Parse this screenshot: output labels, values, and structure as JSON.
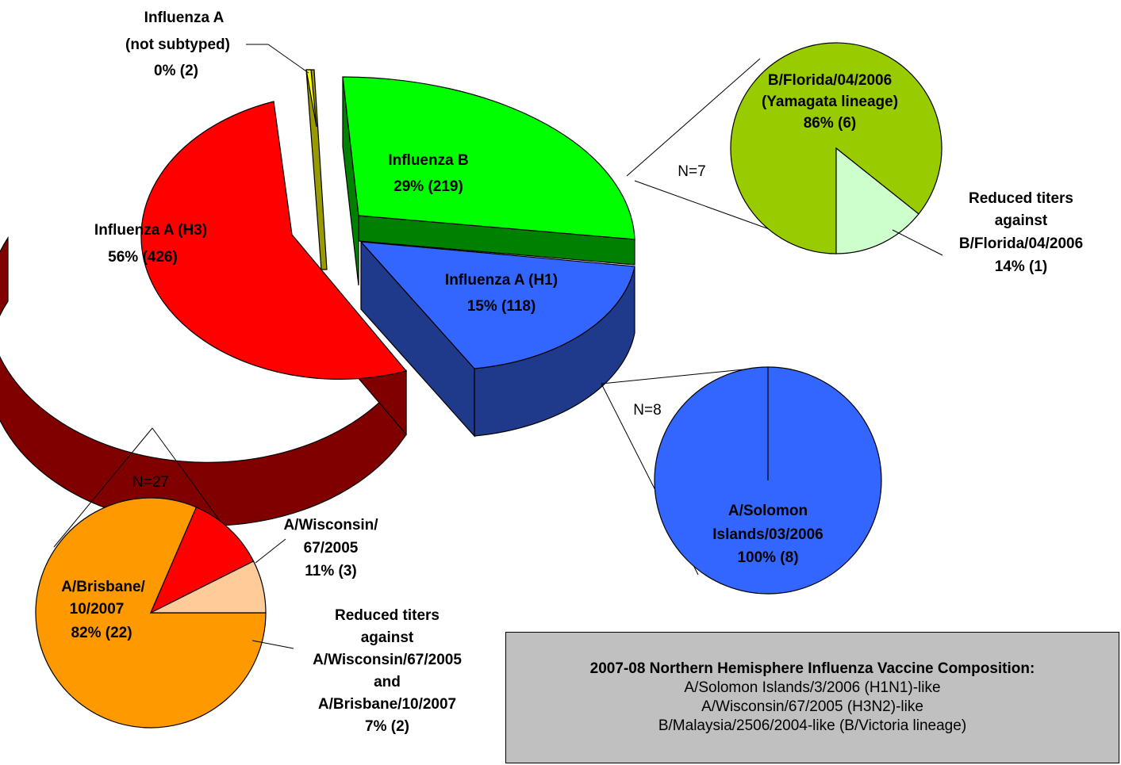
{
  "chart_data": [
    {
      "type": "pie",
      "slices": [
        {
          "name": "Influenza A (H3)",
          "percent": "56%",
          "count": 426,
          "label": [
            "Influenza A (H3)",
            "56% (426)"
          ],
          "color": "#ff0000"
        },
        {
          "name": "Influenza A (not subtyped)",
          "percent": "0%",
          "count": 2,
          "label": [
            "Influenza A",
            "(not subtyped)",
            "0% (2)"
          ],
          "color": "#ffff00"
        },
        {
          "name": "Influenza B",
          "percent": "29%",
          "count": 219,
          "label": [
            "Influenza B",
            "29% (219)"
          ],
          "color": "#00ff00"
        },
        {
          "name": "Influenza A (H1)",
          "percent": "15%",
          "count": 118,
          "label": [
            "Influenza A (H1)",
            "15% (118)"
          ],
          "color": "#3366ff"
        }
      ]
    },
    {
      "type": "pie",
      "n_label": "N=7",
      "slices": [
        {
          "name": "B/Florida/04/2006 (Yamagata lineage)",
          "value": 6,
          "label": [
            "B/Florida/04/2006",
            "(Yamagata lineage)",
            "86% (6)"
          ],
          "color": "#99cc00"
        },
        {
          "name": "Reduced titers against B/Florida/04/2006",
          "value": 1,
          "label": [
            "Reduced titers",
            "against",
            "B/Florida/04/2006",
            "14% (1)"
          ],
          "color": "#ccffcc"
        }
      ]
    },
    {
      "type": "pie",
      "n_label": "N=8",
      "slices": [
        {
          "name": "A/Solomon Islands/03/2006",
          "value": 8,
          "label": [
            "A/Solomon",
            "Islands/03/2006",
            "100% (8)"
          ],
          "color": "#3366ff"
        }
      ]
    },
    {
      "type": "pie",
      "n_label": "N=27",
      "slices": [
        {
          "name": "A/Brisbane/10/2007",
          "value": 22,
          "label": [
            "A/Brisbane/",
            "10/2007",
            "82% (22)"
          ],
          "color": "#ff9900"
        },
        {
          "name": "A/Wisconsin/67/2005",
          "value": 3,
          "label": [
            "A/Wisconsin/",
            "67/2005",
            "11% (3)"
          ],
          "color": "#ff0000"
        },
        {
          "name": "Reduced titers against A/Wisconsin/67/2005 and A/Brisbane/10/2007",
          "value": 2,
          "label": [
            "Reduced titers",
            "against",
            "A/Wisconsin/67/2005",
            "and",
            "A/Brisbane/10/2007",
            "7% (2)"
          ],
          "color": "#ffcc99"
        }
      ]
    }
  ],
  "vaccine_box": {
    "title": "2007-08 Northern Hemisphere Influenza Vaccine Composition:",
    "lines": [
      "A/Solomon Islands/3/2006 (H1N1)-like",
      "A/Wisconsin/67/2005 (H3N2)-like",
      "B/Malaysia/2506/2004-like (B/Victoria lineage)"
    ]
  }
}
